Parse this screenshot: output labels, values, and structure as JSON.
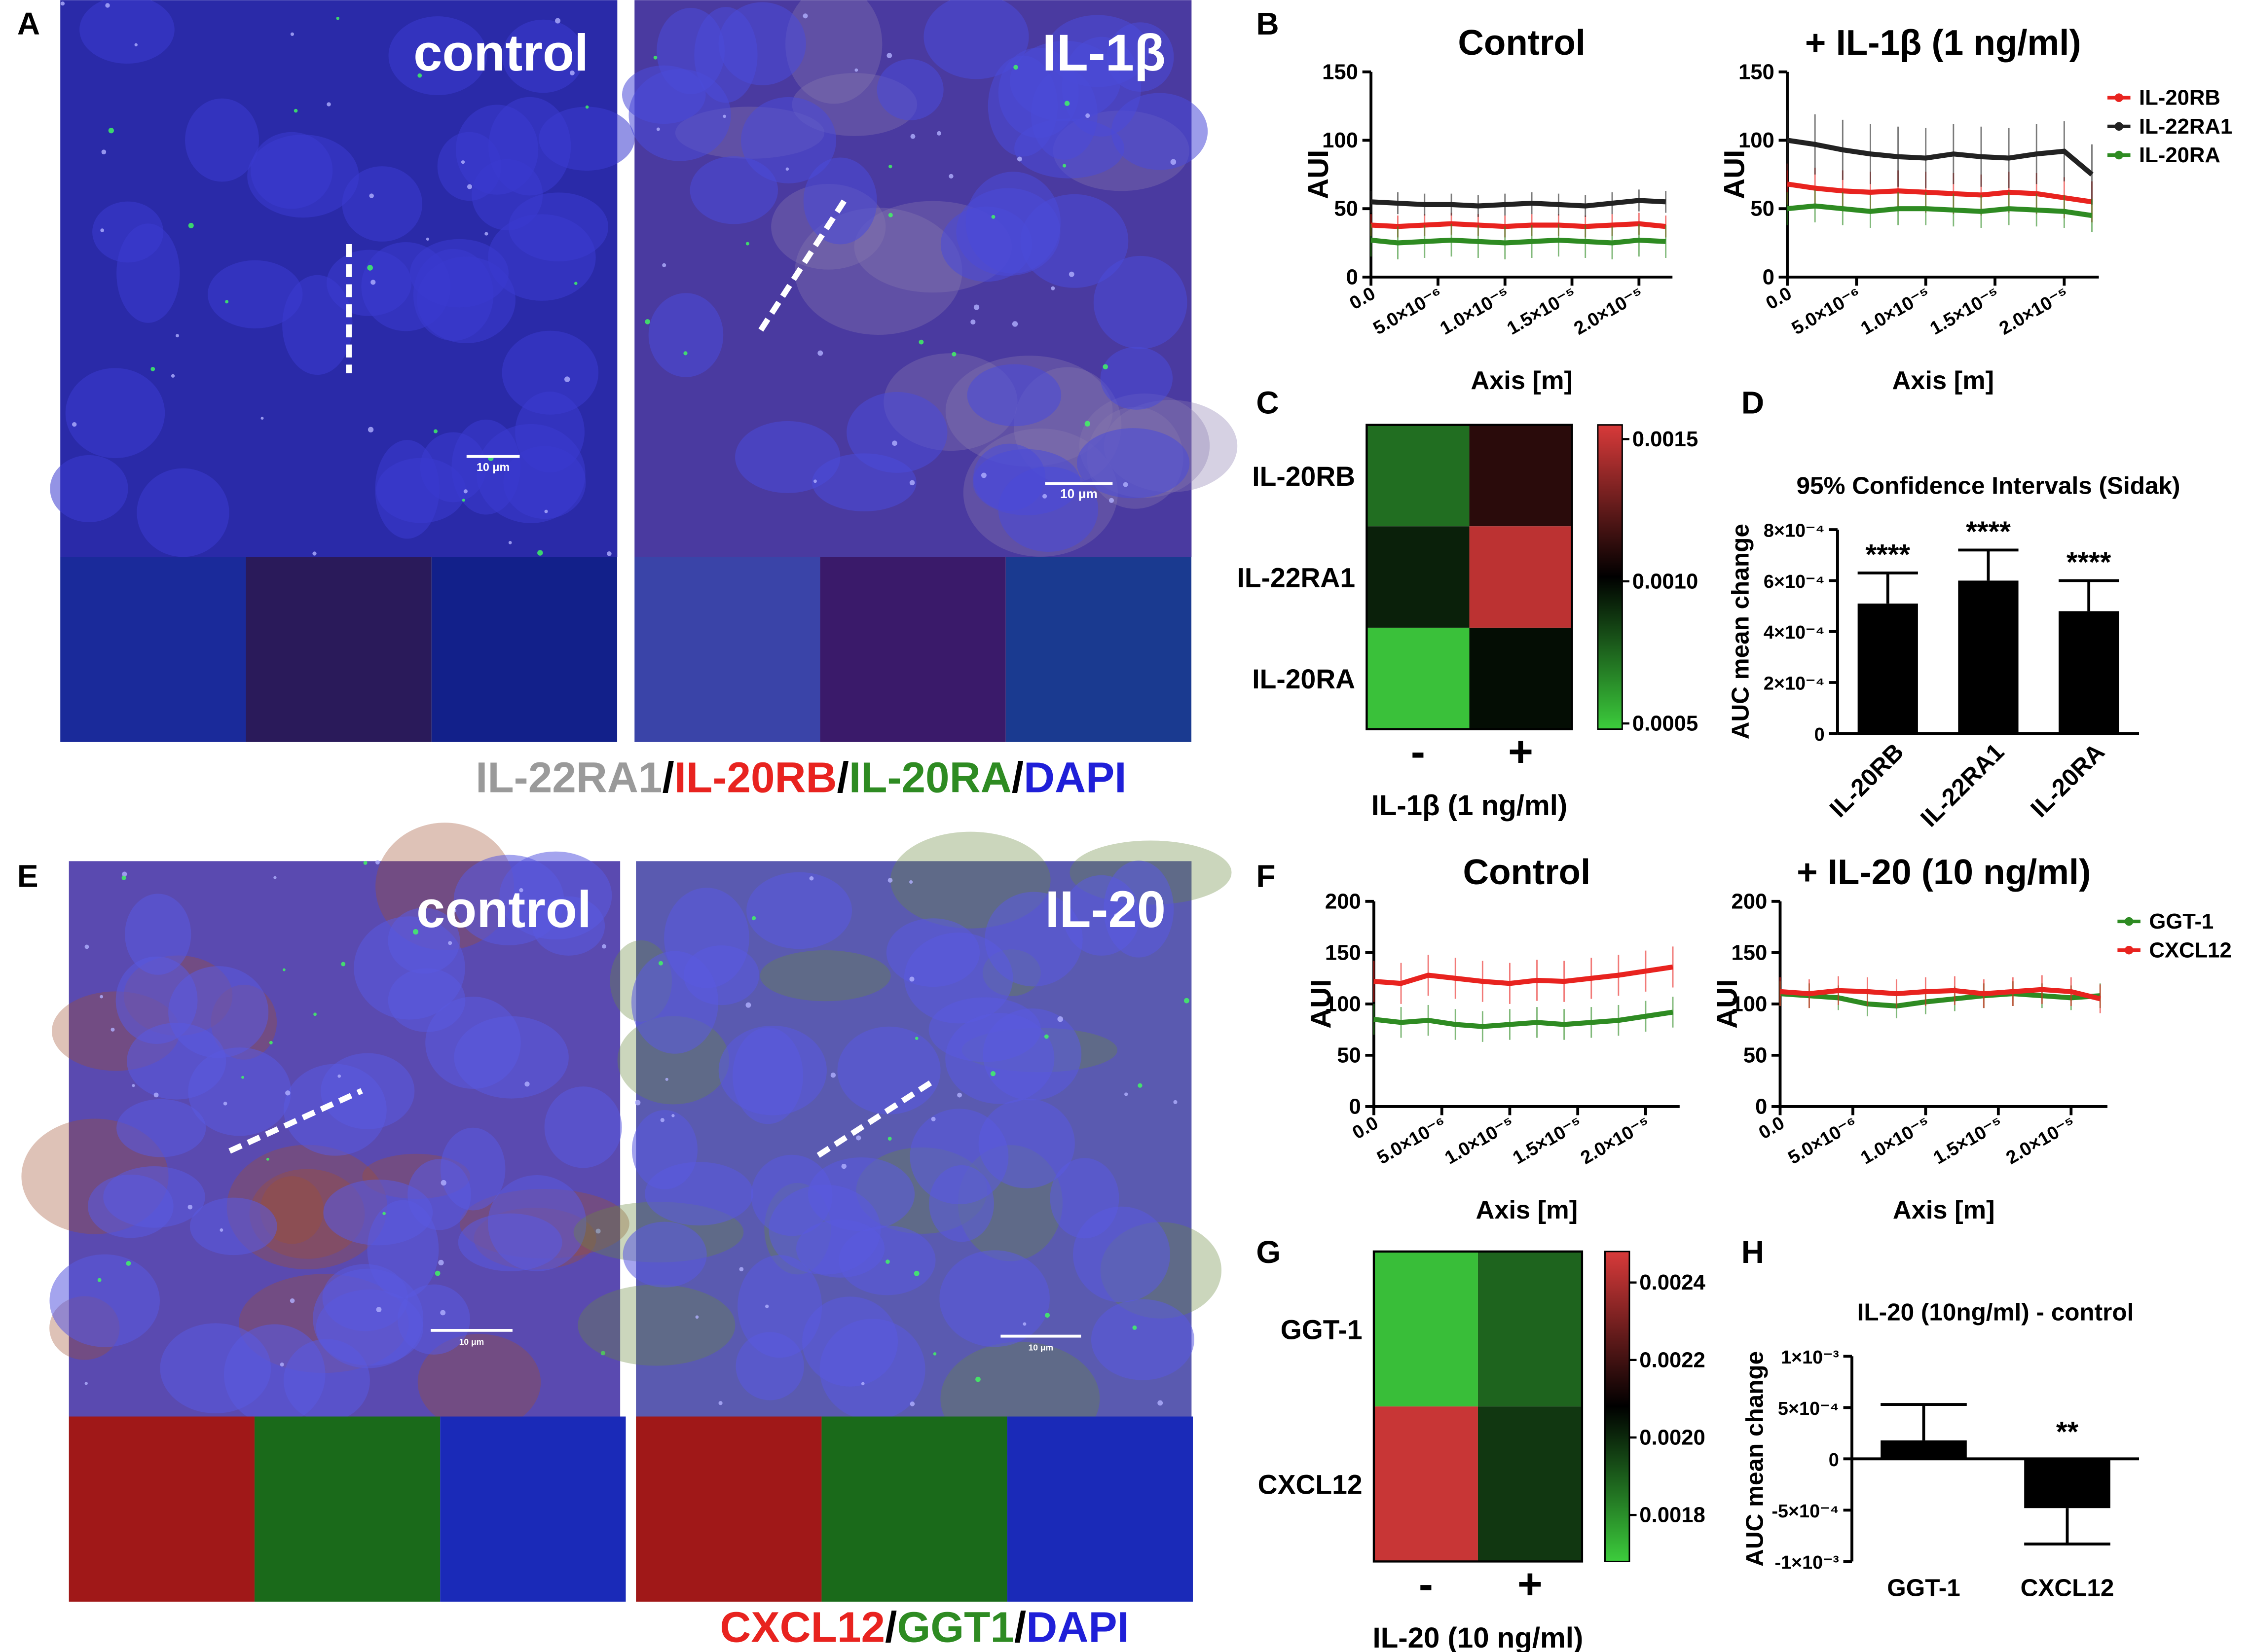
{
  "panel_labels": [
    "A",
    "B",
    "C",
    "D",
    "E",
    "F",
    "G",
    "H"
  ],
  "micrographs": {
    "labels": [
      "control",
      "IL-1β",
      "control",
      "IL-20"
    ],
    "scale_bars": [
      "10 μm",
      "10 μm",
      "10 μm",
      "10 μm"
    ],
    "captions": [
      [
        {
          "text": "IL-22RA1",
          "color": "#9a9a9a"
        },
        {
          "text": "/",
          "color": "#000000"
        },
        {
          "text": "IL-20RB",
          "color": "#e8231f"
        },
        {
          "text": "/",
          "color": "#000000"
        },
        {
          "text": "IL-20RA",
          "color": "#2e8b22"
        },
        {
          "text": "/",
          "color": "#000000"
        },
        {
          "text": "DAPI",
          "color": "#1f1fd8"
        }
      ],
      [
        {
          "text": "CXCL12",
          "color": "#e8231f"
        },
        {
          "text": "/",
          "color": "#000000"
        },
        {
          "text": "GGT1",
          "color": "#2e8b22"
        },
        {
          "text": "/",
          "color": "#000000"
        },
        {
          "text": "DAPI",
          "color": "#1f1fd8"
        }
      ]
    ]
  },
  "chart_data": [
    {
      "type": "line",
      "title": "Control",
      "xlabel": "Axis [m]",
      "ylabel": "AUI",
      "x": [
        0,
        2e-06,
        4e-06,
        6e-06,
        8e-06,
        1e-05,
        1.2e-05,
        1.4e-05,
        1.6e-05,
        1.8e-05,
        2e-05,
        2.2e-05
      ],
      "xlim": [
        0,
        2.25e-05
      ],
      "xticks": [
        {
          "value": 0,
          "label": "0.0"
        },
        {
          "value": 5e-06,
          "label": "5.0×10⁻⁶"
        },
        {
          "value": 1e-05,
          "label": "1.0×10⁻⁵"
        },
        {
          "value": 1.5e-05,
          "label": "1.5×10⁻⁵"
        },
        {
          "value": 2e-05,
          "label": "2.0×10⁻⁵"
        }
      ],
      "ylim": [
        0,
        150
      ],
      "yticks": [
        0,
        50,
        100,
        150
      ],
      "series": [
        {
          "name": "IL-20RB",
          "color": "#e8231f",
          "values": [
            38,
            37,
            38,
            39,
            38,
            37,
            38,
            38,
            37,
            38,
            39,
            37
          ],
          "errors": [
            8,
            8,
            8,
            8,
            8,
            8,
            8,
            8,
            8,
            8,
            8,
            8
          ]
        },
        {
          "name": "IL-22RA1",
          "color": "#222222",
          "values": [
            55,
            54,
            53,
            53,
            52,
            53,
            54,
            53,
            52,
            54,
            56,
            55
          ],
          "errors": [
            8,
            8,
            8,
            8,
            8,
            8,
            8,
            8,
            8,
            8,
            8,
            8
          ]
        },
        {
          "name": "IL-20RA",
          "color": "#2e8b22",
          "values": [
            27,
            25,
            26,
            27,
            26,
            25,
            26,
            27,
            26,
            25,
            27,
            26
          ],
          "errors": [
            12,
            12,
            12,
            12,
            12,
            12,
            12,
            12,
            12,
            12,
            12,
            12
          ]
        }
      ]
    },
    {
      "type": "line",
      "title": "+ IL-1β (1 ng/ml)",
      "xlabel": "Axis [m]",
      "ylabel": "AUI",
      "legend": "right",
      "x": [
        0,
        2e-06,
        4e-06,
        6e-06,
        8e-06,
        1e-05,
        1.2e-05,
        1.4e-05,
        1.6e-05,
        1.8e-05,
        2e-05,
        2.2e-05
      ],
      "xlim": [
        0,
        2.25e-05
      ],
      "xticks": [
        {
          "value": 0,
          "label": "0.0"
        },
        {
          "value": 5e-06,
          "label": "5.0×10⁻⁶"
        },
        {
          "value": 1e-05,
          "label": "1.0×10⁻⁵"
        },
        {
          "value": 1.5e-05,
          "label": "1.5×10⁻⁵"
        },
        {
          "value": 2e-05,
          "label": "2.0×10⁻⁵"
        }
      ],
      "ylim": [
        0,
        150
      ],
      "yticks": [
        0,
        50,
        100,
        150
      ],
      "series": [
        {
          "name": "IL-20RB",
          "color": "#e8231f",
          "values": [
            68,
            65,
            63,
            62,
            63,
            62,
            61,
            60,
            62,
            61,
            58,
            55
          ],
          "errors": [
            15,
            15,
            15,
            15,
            15,
            15,
            15,
            15,
            15,
            15,
            15,
            15
          ]
        },
        {
          "name": "IL-22RA1",
          "color": "#222222",
          "values": [
            100,
            97,
            93,
            90,
            88,
            87,
            90,
            88,
            87,
            90,
            92,
            75
          ],
          "errors": [
            22,
            22,
            22,
            22,
            22,
            22,
            22,
            22,
            22,
            22,
            22,
            22
          ]
        },
        {
          "name": "IL-20RA",
          "color": "#2e8b22",
          "values": [
            50,
            52,
            50,
            48,
            50,
            50,
            49,
            48,
            50,
            49,
            48,
            45
          ],
          "errors": [
            12,
            12,
            12,
            12,
            12,
            12,
            12,
            12,
            12,
            12,
            12,
            12
          ]
        }
      ]
    },
    {
      "type": "heatmap",
      "rows": [
        "IL-20RB",
        "IL-22RA1",
        "IL-20RA"
      ],
      "columns": [
        "-",
        "+"
      ],
      "xlabel": "IL-1β (1 ng/ml)",
      "values": [
        [
          0.00072,
          0.00112
        ],
        [
          0.00093,
          0.00148
        ],
        [
          0.0005,
          0.00098
        ]
      ],
      "zlim": [
        0.00048,
        0.00155
      ],
      "zticks": [
        0.0005,
        {
          "value": 0.001,
          "label": "0.0010"
        },
        0.0015
      ]
    },
    {
      "type": "bar",
      "title": "95% Confidence Intervals (Sidak)",
      "ylabel": "AUC mean change",
      "color": "#000000",
      "categories": [
        "IL-20RB",
        "IL-22RA1",
        "IL-20RA"
      ],
      "values": [
        0.00051,
        0.0006,
        0.00048
      ],
      "errors": [
        0.00012,
        0.00012,
        0.00012
      ],
      "annotations": [
        "****",
        "****",
        "****"
      ],
      "ylim": [
        0,
        0.0008
      ],
      "yticks": [
        0,
        {
          "value": 0.0002,
          "label": "2×10⁻⁴"
        },
        {
          "value": 0.0004,
          "label": "4×10⁻⁴"
        },
        {
          "value": 0.0006,
          "label": "6×10⁻⁴"
        },
        {
          "value": 0.0008,
          "label": "8×10⁻⁴"
        }
      ]
    },
    {
      "type": "line",
      "title": "Control",
      "xlabel": "Axis [m]",
      "ylabel": "AUI",
      "x": [
        0,
        2e-06,
        4e-06,
        6e-06,
        8e-06,
        1e-05,
        1.2e-05,
        1.4e-05,
        1.6e-05,
        1.8e-05,
        2e-05,
        2.2e-05
      ],
      "xlim": [
        0,
        2.25e-05
      ],
      "xticks": [
        {
          "value": 0,
          "label": "0.0"
        },
        {
          "value": 5e-06,
          "label": "5.0×10⁻⁶"
        },
        {
          "value": 1e-05,
          "label": "1.0×10⁻⁵"
        },
        {
          "value": 1.5e-05,
          "label": "1.5×10⁻⁵"
        },
        {
          "value": 2e-05,
          "label": "2.0×10⁻⁵"
        }
      ],
      "ylim": [
        0,
        200
      ],
      "yticks": [
        0,
        50,
        100,
        150,
        200
      ],
      "series": [
        {
          "name": "GGT-1",
          "color": "#2e8b22",
          "values": [
            85,
            82,
            84,
            80,
            78,
            80,
            82,
            80,
            82,
            84,
            88,
            92
          ],
          "errors": [
            15,
            15,
            15,
            15,
            15,
            15,
            15,
            15,
            15,
            15,
            15,
            15
          ]
        },
        {
          "name": "CXCL12",
          "color": "#e8231f",
          "values": [
            122,
            120,
            128,
            125,
            122,
            120,
            123,
            122,
            125,
            128,
            132,
            136
          ],
          "errors": [
            20,
            20,
            20,
            20,
            20,
            20,
            20,
            20,
            20,
            20,
            20,
            20
          ]
        }
      ]
    },
    {
      "type": "line",
      "title": "+ IL-20 (10 ng/ml)",
      "xlabel": "Axis [m]",
      "ylabel": "AUI",
      "legend": "right",
      "x": [
        0,
        2e-06,
        4e-06,
        6e-06,
        8e-06,
        1e-05,
        1.2e-05,
        1.4e-05,
        1.6e-05,
        1.8e-05,
        2e-05,
        2.2e-05
      ],
      "xlim": [
        0,
        2.25e-05
      ],
      "xticks": [
        {
          "value": 0,
          "label": "0.0"
        },
        {
          "value": 5e-06,
          "label": "5.0×10⁻⁶"
        },
        {
          "value": 1e-05,
          "label": "1.0×10⁻⁵"
        },
        {
          "value": 1.5e-05,
          "label": "1.5×10⁻⁵"
        },
        {
          "value": 2e-05,
          "label": "2.0×10⁻⁵"
        }
      ],
      "ylim": [
        0,
        200
      ],
      "yticks": [
        0,
        50,
        100,
        150,
        200
      ],
      "series": [
        {
          "name": "GGT-1",
          "color": "#2e8b22",
          "values": [
            110,
            108,
            106,
            100,
            98,
            102,
            105,
            108,
            110,
            108,
            106,
            108
          ],
          "errors": [
            12,
            12,
            12,
            12,
            12,
            12,
            12,
            12,
            12,
            12,
            12,
            12
          ]
        },
        {
          "name": "CXCL12",
          "color": "#e8231f",
          "values": [
            112,
            110,
            113,
            112,
            110,
            112,
            113,
            110,
            112,
            114,
            112,
            105
          ],
          "errors": [
            14,
            14,
            14,
            14,
            14,
            14,
            14,
            14,
            14,
            14,
            14,
            14
          ]
        }
      ]
    },
    {
      "type": "heatmap",
      "rows": [
        "GGT-1",
        "CXCL12"
      ],
      "columns": [
        "-",
        "+"
      ],
      "xlabel": "IL-20 (10 ng/ml)",
      "values": [
        [
          0.0017,
          0.00188
        ],
        [
          0.00245,
          0.00197
        ]
      ],
      "zlim": [
        0.00168,
        0.00248
      ],
      "zticks": [
        0.0018,
        {
          "value": 0.002,
          "label": "0.0020"
        },
        0.0022,
        0.0024
      ]
    },
    {
      "type": "bar",
      "title": "IL-20 (10ng/ml) - control",
      "ylabel": "AUC mean change",
      "color": "#000000",
      "categories": [
        "GGT-1",
        "CXCL12"
      ],
      "values": [
        0.00018,
        -0.00048
      ],
      "errors": [
        0.00035,
        0.00035
      ],
      "annotations": [
        null,
        "**"
      ],
      "ylim": [
        -0.001,
        0.001
      ],
      "yticks": [
        {
          "value": -0.001,
          "label": "-1×10⁻³"
        },
        {
          "value": -0.0005,
          "label": "-5×10⁻⁴"
        },
        0,
        {
          "value": 0.0005,
          "label": "5×10⁻⁴"
        },
        {
          "value": 0.001,
          "label": "1×10⁻³"
        }
      ]
    }
  ]
}
